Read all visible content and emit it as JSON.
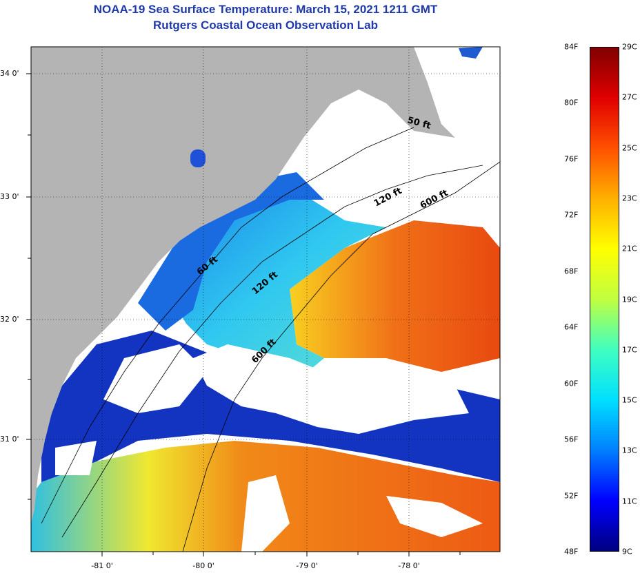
{
  "header": {
    "title": "NOAA-19 Sea Surface Temperature:  March 15, 2021 1211 GMT",
    "subtitle": "Rutgers Coastal Ocean Observation Lab"
  },
  "map": {
    "latitude_labels": [
      "34 0'",
      "33 0'",
      "32 0'",
      "31 0'"
    ],
    "longitude_labels": [
      "-81 0'",
      "-80 0'",
      "-79 0'",
      "-78 0'"
    ],
    "depth_labels": [
      "50 ft",
      "120 ft",
      "600 ft",
      "60 ft",
      "120 ft",
      "600 ft"
    ],
    "colors": {
      "land": "#b4b4b4",
      "cloud": "#ffffff",
      "cold": "#1030c8",
      "cool": "#20a0f0",
      "mid": "#40e0e0",
      "warm": "#f8e020",
      "hot": "#f05010"
    }
  },
  "colorbar": {
    "fahrenheit_labels": [
      "84F",
      "80F",
      "76F",
      "72F",
      "68F",
      "64F",
      "60F",
      "56F",
      "52F",
      "48F"
    ],
    "celsius_labels": [
      "29C",
      "27C",
      "25C",
      "23C",
      "21C",
      "19C",
      "17C",
      "15C",
      "13C",
      "11C",
      "9C"
    ],
    "gradient": [
      "#000080",
      "#0000ff",
      "#0080ff",
      "#00e0ff",
      "#40ffc0",
      "#c0ff40",
      "#ffff00",
      "#ffb000",
      "#ff5000",
      "#e00000",
      "#800000"
    ]
  }
}
